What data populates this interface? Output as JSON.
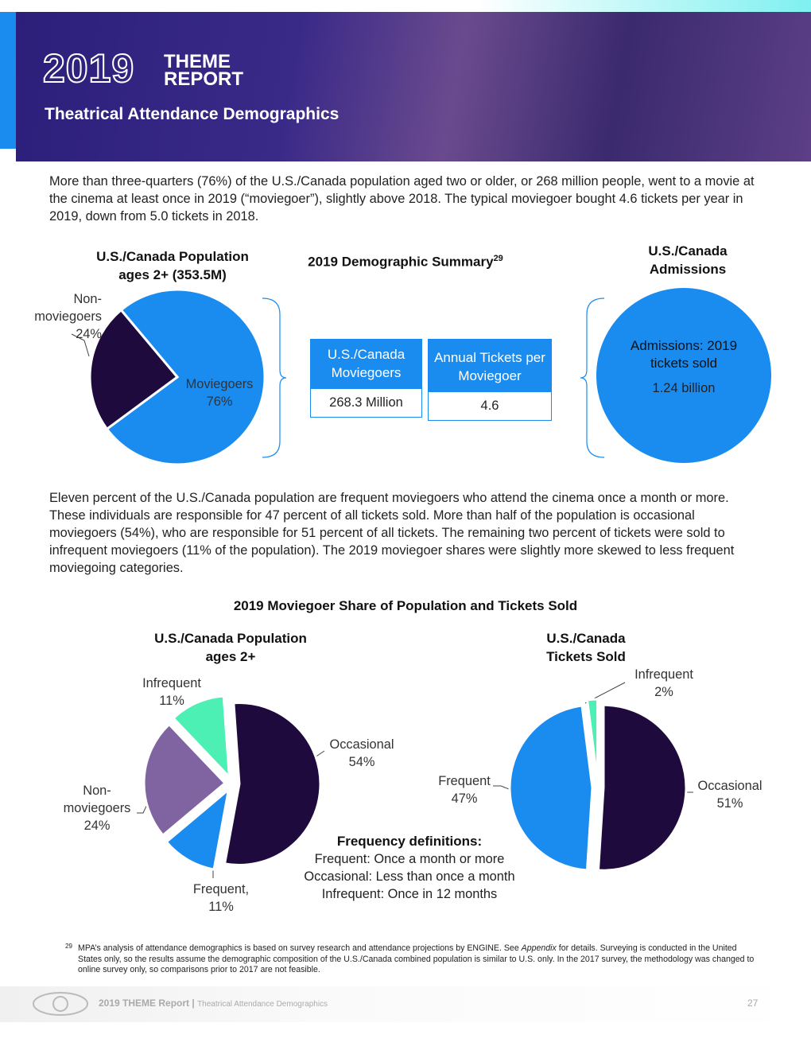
{
  "header": {
    "year": "2019",
    "title_line1": "THEME",
    "title_line2": "REPORT",
    "subtitle": "Theatrical Attendance Demographics"
  },
  "paragraphs": [
    "More than three-quarters (76%) of the U.S./Canada population aged two or older, or 268 million people, went to a movie at the cinema at least once in 2019 (“moviegoer”), slightly above 2018. The typical moviegoer bought 4.6 tickets per year in 2019, down from 5.0 tickets in 2018.",
    "Eleven percent of the U.S./Canada population are frequent moviegoers who attend the cinema once a month or more. These individuals are responsible for 47 percent of all tickets sold. More than half of the population is occasional moviegoers (54%), who are responsible for 51 percent of all tickets. The remaining two percent of tickets were sold to infrequent moviegoers (11% of the population). The 2019 moviegoer shares were slightly more skewed to less frequent moviegoing categories."
  ],
  "summary": {
    "title": "2019 Demographic Summary",
    "footnote_ref": "29",
    "boxes": [
      {
        "header": "U.S./Canada Moviegoers",
        "value": "268.3 Million"
      },
      {
        "header": "Annual Tickets per Moviegoer",
        "value": "4.6"
      }
    ]
  },
  "admissions": {
    "title": "U.S./Canada Admissions",
    "label": "Admissions: 2019 tickets sold",
    "value": "1.24 billion"
  },
  "share_title": "2019 Moviegoer Share of Population and Tickets Sold",
  "chart_data": [
    {
      "type": "pie",
      "title": "U.S./Canada Population ages 2+ (353.5M)",
      "categories": [
        "Moviegoers",
        "Non-moviegoers"
      ],
      "values": [
        76,
        24
      ],
      "value_labels": [
        "76%",
        "24%"
      ],
      "colors": [
        "#1a8cf0",
        "#1e0a3c"
      ]
    },
    {
      "type": "pie",
      "title": "U.S./Canada Population ages 2+",
      "categories": [
        "Occasional",
        "Frequent,",
        "Non-moviegoers",
        "Infrequent"
      ],
      "values": [
        54,
        11,
        24,
        11
      ],
      "value_labels": [
        "54%",
        "11%",
        "24%",
        "11%"
      ],
      "colors": [
        "#1e0a3c",
        "#1a8cf0",
        "#8064a2",
        "#4cf0b4"
      ]
    },
    {
      "type": "pie",
      "title": "U.S./Canada Tickets Sold",
      "categories": [
        "Occasional",
        "Frequent",
        "Infrequent"
      ],
      "values": [
        51,
        47,
        2
      ],
      "value_labels": [
        "51%",
        "47%",
        "2%"
      ],
      "colors": [
        "#1e0a3c",
        "#1a8cf0",
        "#4cf0b4"
      ]
    }
  ],
  "definitions": {
    "title": "Frequency definitions:",
    "items": [
      "Frequent: Once a month or more",
      "Occasional: Less than once a month",
      "Infrequent: Once in 12 months"
    ]
  },
  "footnote": {
    "mark": "29",
    "before": "MPA’s analysis of attendance demographics is based on survey research and attendance projections by ENGINE. See ",
    "emphasis": "Appendix",
    "after": " for details. Surveying is conducted in the United States only, so the results assume the demographic composition of the U.S./Canada combined population is similar to U.S. only. In the 2017 survey, the methodology was changed to online survey only, so comparisons prior to 2017 are not feasible."
  },
  "footer": {
    "report": "2019 THEME Report",
    "separator": "|",
    "section": "Theatrical Attendance Demographics",
    "page": "27"
  }
}
